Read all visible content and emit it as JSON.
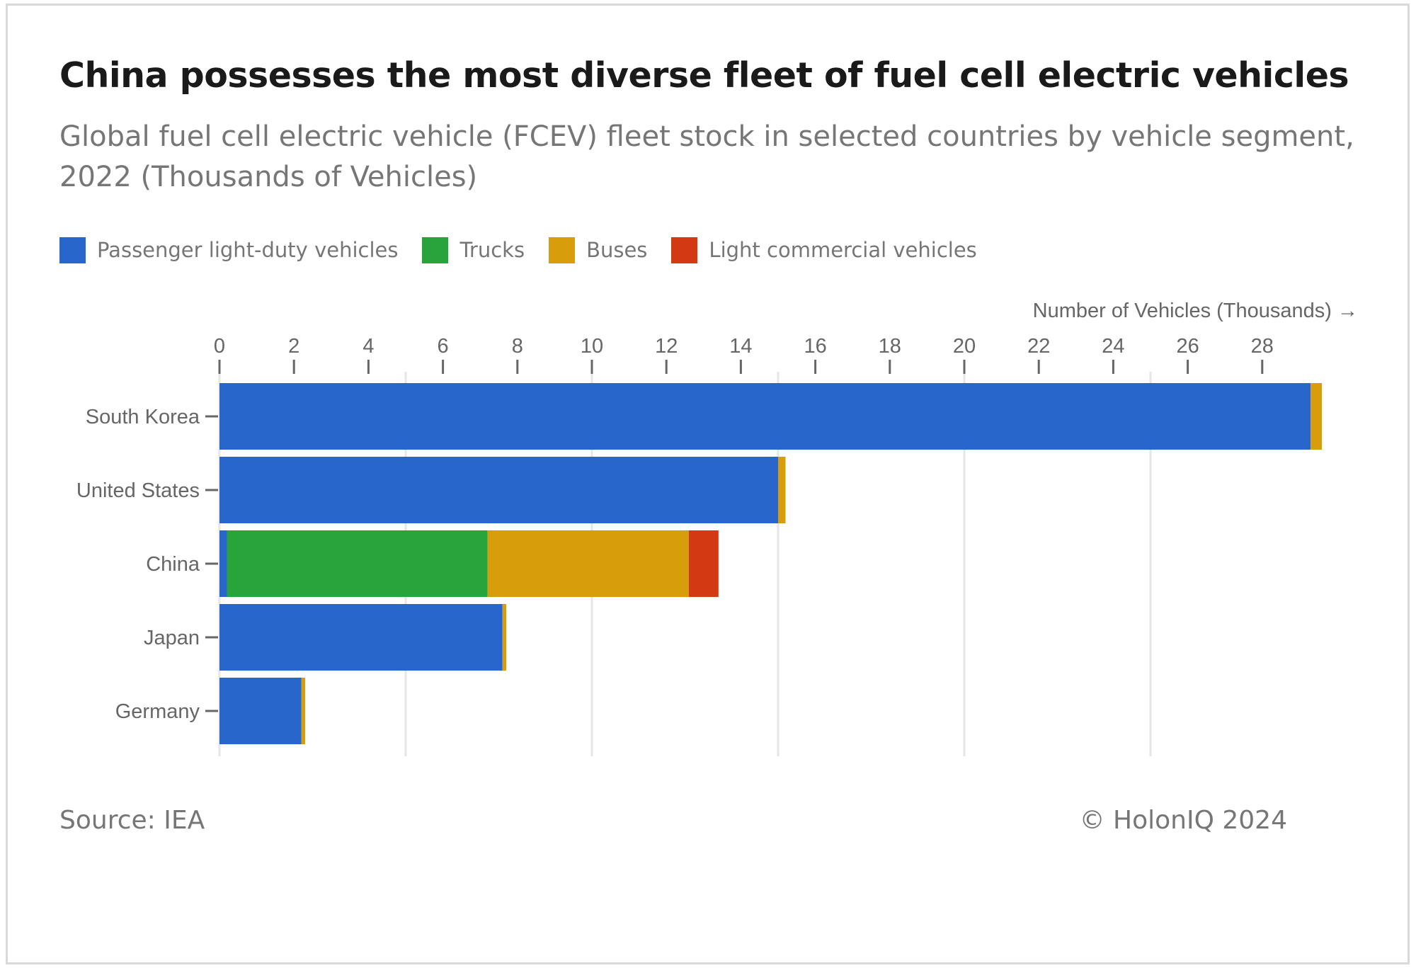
{
  "header": {
    "title": "China possesses the most diverse fleet of fuel cell electric vehicles",
    "subtitle": "Global fuel cell electric vehicle (FCEV) fleet stock in selected countries by vehicle segment, 2022 (Thousands of Vehicles)"
  },
  "footer": {
    "source": "Source: IEA",
    "copyright": "© HolonIQ 2024"
  },
  "chart_data": {
    "type": "bar",
    "orientation": "horizontal",
    "stacked": true,
    "title": "China possesses the most diverse fleet of fuel cell electric vehicles",
    "subtitle": "Global fuel cell electric vehicle (FCEV) fleet stock in selected countries by vehicle segment, 2022 (Thousands of Vehicles)",
    "xlabel": "Number of Vehicles (Thousands) →",
    "ylabel": "",
    "xlim": [
      0,
      30
    ],
    "xticks": [
      0,
      2,
      4,
      6,
      8,
      10,
      12,
      14,
      16,
      18,
      20,
      22,
      24,
      26,
      28
    ],
    "gridlines_at": [
      0,
      5,
      10,
      15,
      20,
      25
    ],
    "grid": true,
    "legend_position": "top-left",
    "categories": [
      "South Korea",
      "United States",
      "China",
      "Japan",
      "Germany"
    ],
    "series": [
      {
        "name": "Passenger light-duty vehicles",
        "color": "#2966cc",
        "values": [
          29.3,
          15.0,
          0.2,
          7.6,
          2.2
        ]
      },
      {
        "name": "Trucks",
        "color": "#28a43a",
        "values": [
          0,
          0,
          7.0,
          0,
          0
        ]
      },
      {
        "name": "Buses",
        "color": "#d89d0b",
        "values": [
          0.3,
          0.2,
          5.4,
          0.1,
          0.1
        ]
      },
      {
        "name": "Light commercial vehicles",
        "color": "#d33a14",
        "values": [
          0,
          0,
          0.8,
          0,
          0
        ]
      }
    ]
  }
}
